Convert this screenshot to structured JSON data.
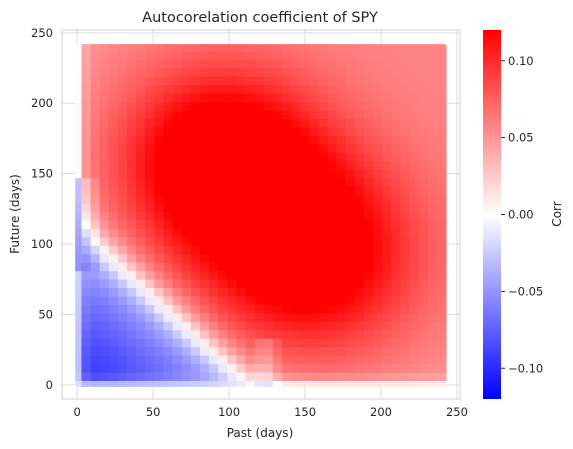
{
  "chart_data": {
    "type": "heatmap",
    "title": "Autocorelation coefficient of SPY",
    "xlabel": "Past (days)",
    "ylabel": "Future (days)",
    "xlim": [
      -10,
      252
    ],
    "ylim": [
      -10,
      252
    ],
    "grid": true,
    "x_ticks": [
      0,
      50,
      100,
      150,
      200,
      250
    ],
    "x_tick_labels": [
      "0",
      "50",
      "100",
      "150",
      "200",
      "250"
    ],
    "y_ticks": [
      0,
      50,
      100,
      150,
      200,
      250
    ],
    "y_tick_labels": [
      "0",
      "50",
      "100",
      "150",
      "200",
      "250"
    ],
    "data_extent": {
      "x": [
        0,
        242
      ],
      "y": [
        0,
        242
      ]
    },
    "colormap": "bwr",
    "colors": {
      "low": "#0000ff",
      "mid": "#ffffff",
      "high": "#ff0000"
    },
    "colorbar": {
      "label": "Corr",
      "range": [
        -0.12,
        0.12
      ],
      "ticks": [
        -0.1,
        -0.05,
        0.0,
        0.05,
        0.1
      ],
      "tick_labels": [
        "−0.10",
        "−0.05",
        "0.00",
        "0.05",
        "0.10"
      ]
    },
    "features": [
      {
        "region": "lower-left triangle (past + future < ~110)",
        "corr": -0.1
      },
      {
        "region": "peak near past 90, future 160",
        "corr": 0.12
      },
      {
        "region": "peak near past 150, future 90",
        "corr": 0.12
      },
      {
        "region": "upper-right corner",
        "corr": 0.06
      }
    ]
  }
}
